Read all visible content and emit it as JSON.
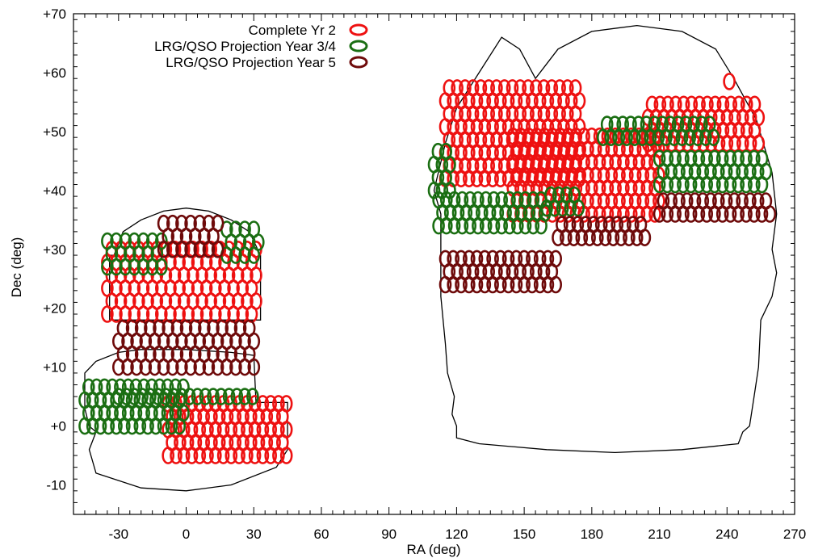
{
  "chart_data": {
    "type": "scatter",
    "title": "",
    "xlabel": "RA (deg)",
    "ylabel": "Dec (deg)",
    "xlim": [
      -50,
      270
    ],
    "ylim": [
      -15,
      70
    ],
    "x_ticks": [
      "-30",
      "0",
      "30",
      "60",
      "90",
      "120",
      "150",
      "180",
      "210",
      "240",
      "270"
    ],
    "x_tick_values": [
      -30,
      0,
      30,
      60,
      90,
      120,
      150,
      180,
      210,
      240,
      270
    ],
    "y_ticks": [
      "-10",
      "+0",
      "+10",
      "+20",
      "+30",
      "+40",
      "+50",
      "+60",
      "+70"
    ],
    "y_tick_values": [
      -10,
      0,
      10,
      20,
      30,
      40,
      50,
      60,
      70
    ],
    "grid": false,
    "legend_position": "top-left",
    "marker": "ellipse",
    "series": [
      {
        "name": "Complete Yr 2",
        "color": "#ee1111",
        "regions": [
          {
            "ra": [
              -35,
              32
            ],
            "dec": [
              19,
              32
            ],
            "step": [
              4,
              2.2
            ]
          },
          {
            "ra": [
              -8,
              45
            ],
            "dec": [
              -5,
              4
            ],
            "step": [
              3.5,
              2.2
            ]
          },
          {
            "ra": [
              115,
              175
            ],
            "dec": [
              42,
              59
            ],
            "step": [
              3.5,
              2.2
            ]
          },
          {
            "ra": [
              145,
              210
            ],
            "dec": [
              36,
              50
            ],
            "step": [
              3.5,
              2.2
            ]
          },
          {
            "ra": [
              205,
              255
            ],
            "dec": [
              48,
              55
            ],
            "step": [
              3.5,
              2.2
            ]
          }
        ],
        "points": [
          [
            241,
            58.5
          ]
        ]
      },
      {
        "name": "LRG/QSO Projection Year 3/4",
        "color": "#1a6e12",
        "regions": [
          {
            "ra": [
              -35,
              -10
            ],
            "dec": [
              27,
              33
            ],
            "step": [
              4,
              2.2
            ]
          },
          {
            "ra": [
              18,
              32
            ],
            "dec": [
              29,
              34
            ],
            "step": [
              4,
              2.2
            ]
          },
          {
            "ra": [
              -45,
              0
            ],
            "dec": [
              0,
              7
            ],
            "step": [
              3.5,
              2.2
            ]
          },
          {
            "ra": [
              -30,
              30
            ],
            "dec": [
              5,
              7
            ],
            "step": [
              3.5,
              2.2
            ]
          },
          {
            "ra": [
              112,
              160
            ],
            "dec": [
              34,
              39
            ],
            "step": [
              3.5,
              2.2
            ]
          },
          {
            "ra": [
              110,
              118
            ],
            "dec": [
              40,
              48
            ],
            "step": [
              3.5,
              2.2
            ]
          },
          {
            "ra": [
              185,
              235
            ],
            "dec": [
              49,
              53
            ],
            "step": [
              3.5,
              2.2
            ]
          },
          {
            "ra": [
              210,
              258
            ],
            "dec": [
              41,
              47
            ],
            "step": [
              3.5,
              2.2
            ]
          },
          {
            "ra": [
              160,
              175
            ],
            "dec": [
              37,
              40
            ],
            "step": [
              3.5,
              2.2
            ]
          }
        ],
        "points": []
      },
      {
        "name": "LRG/QSO Projection Year 5",
        "color": "#6e0a0a",
        "regions": [
          {
            "ra": [
              -30,
              30
            ],
            "dec": [
              10,
              18
            ],
            "step": [
              4,
              2.2
            ]
          },
          {
            "ra": [
              -10,
              15
            ],
            "dec": [
              30,
              35
            ],
            "step": [
              4,
              2.2
            ]
          },
          {
            "ra": [
              115,
              165
            ],
            "dec": [
              24,
              29
            ],
            "step": [
              3.5,
              2.2
            ]
          },
          {
            "ra": [
              165,
              205
            ],
            "dec": [
              32,
              35
            ],
            "step": [
              3.5,
              2.2
            ]
          },
          {
            "ra": [
              210,
              260
            ],
            "dec": [
              36,
              39
            ],
            "step": [
              3.5,
              2.2
            ]
          }
        ],
        "points": []
      }
    ],
    "footprint_outlines": [
      [
        [
          -32,
          29
        ],
        [
          -28,
          33
        ],
        [
          -20,
          35
        ],
        [
          -10,
          36.5
        ],
        [
          0,
          37
        ],
        [
          10,
          36.5
        ],
        [
          20,
          35
        ],
        [
          28,
          33
        ],
        [
          33,
          29
        ],
        [
          33,
          18
        ],
        [
          -34,
          18
        ],
        [
          -34,
          29
        ]
      ],
      [
        [
          -45,
          9
        ],
        [
          -40,
          11
        ],
        [
          -30,
          12.5
        ],
        [
          -20,
          13
        ],
        [
          0,
          13
        ],
        [
          20,
          12.5
        ],
        [
          30,
          12
        ],
        [
          31,
          4
        ],
        [
          45,
          4
        ],
        [
          45,
          -4
        ],
        [
          40,
          -7
        ],
        [
          20,
          -10
        ],
        [
          0,
          -11
        ],
        [
          -20,
          -10.5
        ],
        [
          -40,
          -8
        ],
        [
          -43,
          -4
        ],
        [
          -40,
          -1
        ],
        [
          -43,
          0
        ],
        [
          -45,
          3
        ],
        [
          -45,
          9
        ]
      ],
      [
        [
          113,
          22
        ],
        [
          113,
          36
        ],
        [
          110,
          40
        ],
        [
          115,
          48
        ],
        [
          120,
          54
        ],
        [
          130,
          60
        ],
        [
          140,
          66
        ],
        [
          148,
          64
        ],
        [
          155,
          59
        ],
        [
          165,
          64
        ],
        [
          180,
          67
        ],
        [
          200,
          68
        ],
        [
          220,
          67
        ],
        [
          235,
          64
        ],
        [
          243,
          59
        ],
        [
          253,
          52
        ],
        [
          260,
          43
        ],
        [
          262,
          36
        ],
        [
          260,
          30
        ],
        [
          262,
          26
        ],
        [
          260,
          22
        ],
        [
          255,
          18
        ],
        [
          254,
          10
        ],
        [
          252,
          5
        ],
        [
          250,
          0
        ],
        [
          247,
          -1
        ],
        [
          245,
          -3
        ],
        [
          220,
          -4
        ],
        [
          190,
          -4.5
        ],
        [
          160,
          -4
        ],
        [
          130,
          -3
        ],
        [
          120,
          -2
        ],
        [
          120,
          0
        ],
        [
          118,
          2
        ],
        [
          119,
          5
        ],
        [
          116,
          9
        ],
        [
          115,
          14
        ],
        [
          114,
          18
        ],
        [
          113,
          22
        ]
      ]
    ]
  }
}
